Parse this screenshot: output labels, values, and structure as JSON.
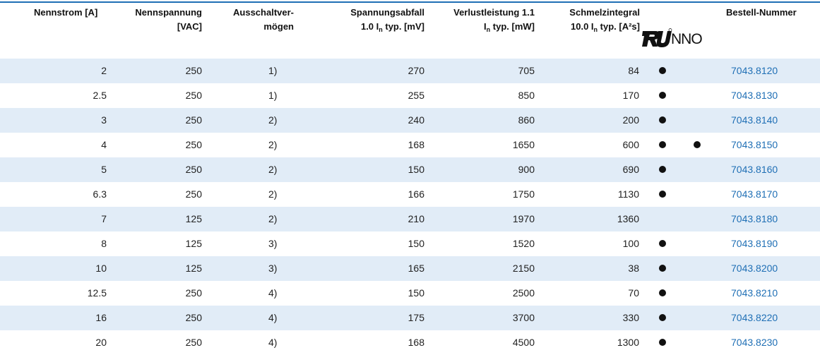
{
  "table": {
    "headers": [
      {
        "lines": [
          [
            {
              "t": "Nennstrom [A]"
            }
          ]
        ]
      },
      {
        "lines": [
          [
            {
              "t": "Nennspannung"
            }
          ],
          [
            {
              "t": "[VAC]"
            }
          ]
        ]
      },
      {
        "lines": [
          [
            {
              "t": "Ausschaltver-"
            }
          ],
          [
            {
              "t": "mögen"
            }
          ]
        ]
      },
      {
        "lines": [
          [
            {
              "t": "Spannungsabfall"
            }
          ],
          [
            {
              "t": "1.0 I"
            },
            {
              "sub": "n"
            },
            {
              "t": " typ. [mV]"
            }
          ]
        ]
      },
      {
        "lines": [
          [
            {
              "t": "Verlustleistung 1.1"
            }
          ],
          [
            {
              "t": "I"
            },
            {
              "sub": "n"
            },
            {
              "t": " typ. [mW]"
            }
          ]
        ]
      },
      {
        "lines": [
          [
            {
              "t": "Schmelzintegral"
            }
          ],
          [
            {
              "t": "10.0 I"
            },
            {
              "sub": "n"
            },
            {
              "t": " typ. [A²s]"
            }
          ]
        ]
      },
      {
        "lines": [
          [
            {
              "t": "Bestell-Nummer"
            }
          ]
        ]
      }
    ],
    "certification": {
      "nno": "NNO"
    },
    "rows": [
      [
        2,
        250,
        "1)",
        270,
        705,
        84,
        true,
        false,
        "7043.8120"
      ],
      [
        2.5,
        250,
        "1)",
        255,
        850,
        170,
        true,
        false,
        "7043.8130"
      ],
      [
        3,
        250,
        "2)",
        240,
        860,
        200,
        true,
        false,
        "7043.8140"
      ],
      [
        4,
        250,
        "2)",
        168,
        1650,
        600,
        true,
        true,
        "7043.8150"
      ],
      [
        5,
        250,
        "2)",
        150,
        900,
        690,
        true,
        false,
        "7043.8160"
      ],
      [
        6.3,
        250,
        "2)",
        166,
        1750,
        1130,
        true,
        false,
        "7043.8170"
      ],
      [
        7,
        125,
        "2)",
        210,
        1970,
        1360,
        false,
        false,
        "7043.8180"
      ],
      [
        8,
        125,
        "3)",
        150,
        1520,
        100,
        true,
        false,
        "7043.8190"
      ],
      [
        10,
        125,
        "3)",
        165,
        2150,
        38,
        true,
        false,
        "7043.8200"
      ],
      [
        12.5,
        250,
        "4)",
        150,
        2500,
        70,
        true,
        false,
        "7043.8210"
      ],
      [
        16,
        250,
        "4)",
        175,
        3700,
        330,
        true,
        false,
        "7043.8220"
      ],
      [
        20,
        250,
        "4)",
        168,
        4500,
        1300,
        true,
        false,
        "7043.8230"
      ]
    ]
  }
}
